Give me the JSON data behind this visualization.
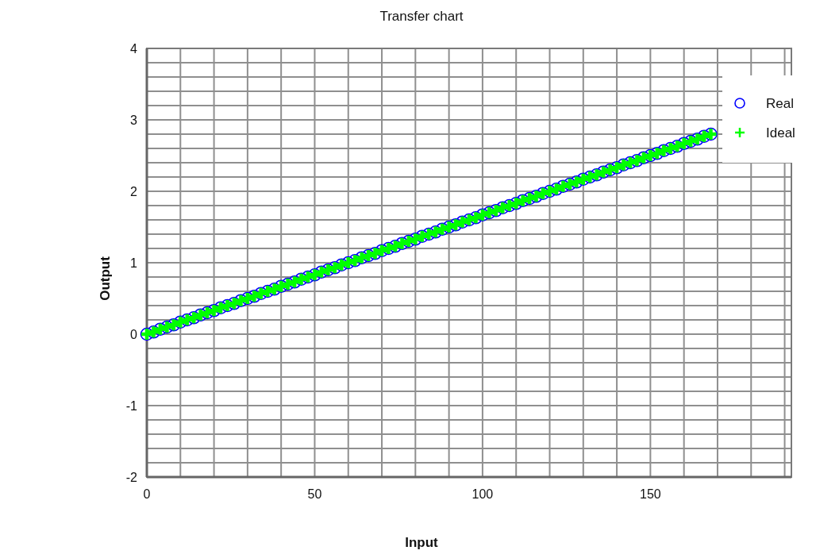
{
  "chart_data": {
    "type": "scatter",
    "title": "Transfer chart",
    "xlabel": "Input",
    "ylabel": "Output",
    "x": [
      0,
      2,
      4,
      6,
      8,
      10,
      12,
      14,
      16,
      18,
      20,
      22,
      24,
      26,
      28,
      30,
      32,
      34,
      36,
      38,
      40,
      42,
      44,
      46,
      48,
      50,
      52,
      54,
      56,
      58,
      60,
      62,
      64,
      66,
      68,
      70,
      72,
      74,
      76,
      78,
      80,
      82,
      84,
      86,
      88,
      90,
      92,
      94,
      96,
      98,
      100,
      102,
      104,
      106,
      108,
      110,
      112,
      114,
      116,
      118,
      120,
      122,
      124,
      126,
      128,
      130,
      132,
      134,
      136,
      138,
      140,
      142,
      144,
      146,
      148,
      150,
      152,
      154,
      156,
      158,
      160,
      162,
      164,
      166,
      168
    ],
    "series": [
      {
        "name": "Real",
        "color": "#0000ff",
        "marker": "circle",
        "values": [
          0,
          0.03,
          0.07,
          0.1,
          0.13,
          0.17,
          0.2,
          0.23,
          0.27,
          0.3,
          0.33,
          0.37,
          0.4,
          0.43,
          0.47,
          0.5,
          0.53,
          0.57,
          0.6,
          0.63,
          0.67,
          0.7,
          0.73,
          0.77,
          0.8,
          0.83,
          0.87,
          0.9,
          0.93,
          0.97,
          1,
          1.03,
          1.07,
          1.1,
          1.13,
          1.17,
          1.2,
          1.23,
          1.27,
          1.3,
          1.33,
          1.37,
          1.4,
          1.43,
          1.47,
          1.5,
          1.53,
          1.57,
          1.6,
          1.63,
          1.67,
          1.7,
          1.73,
          1.77,
          1.8,
          1.83,
          1.87,
          1.9,
          1.93,
          1.97,
          2,
          2.03,
          2.07,
          2.1,
          2.13,
          2.17,
          2.2,
          2.23,
          2.27,
          2.3,
          2.33,
          2.37,
          2.4,
          2.43,
          2.47,
          2.5,
          2.53,
          2.57,
          2.6,
          2.63,
          2.67,
          2.7,
          2.73,
          2.77,
          2.8
        ]
      },
      {
        "name": "Ideal",
        "color": "#00ff00",
        "marker": "cross",
        "values": [
          0,
          0.03,
          0.07,
          0.1,
          0.13,
          0.17,
          0.2,
          0.23,
          0.27,
          0.3,
          0.33,
          0.37,
          0.4,
          0.43,
          0.47,
          0.5,
          0.53,
          0.57,
          0.6,
          0.63,
          0.67,
          0.7,
          0.73,
          0.77,
          0.8,
          0.83,
          0.87,
          0.9,
          0.93,
          0.97,
          1,
          1.03,
          1.07,
          1.1,
          1.13,
          1.17,
          1.2,
          1.23,
          1.27,
          1.3,
          1.33,
          1.37,
          1.4,
          1.43,
          1.47,
          1.5,
          1.53,
          1.57,
          1.6,
          1.63,
          1.67,
          1.7,
          1.73,
          1.77,
          1.8,
          1.83,
          1.87,
          1.9,
          1.93,
          1.97,
          2,
          2.03,
          2.07,
          2.1,
          2.13,
          2.17,
          2.2,
          2.23,
          2.27,
          2.3,
          2.33,
          2.37,
          2.4,
          2.43,
          2.47,
          2.5,
          2.53,
          2.57,
          2.6,
          2.63,
          2.67,
          2.7,
          2.73,
          2.77,
          2.8
        ]
      }
    ],
    "xlim": [
      0,
      192
    ],
    "xticks": [
      0,
      {
        "value": 10,
        "label": null
      },
      {
        "value": 20,
        "label": null
      },
      {
        "value": 30,
        "label": null
      },
      {
        "value": 40,
        "label": null
      },
      50,
      {
        "value": 60,
        "label": null
      },
      {
        "value": 70,
        "label": null
      },
      {
        "value": 80,
        "label": null
      },
      {
        "value": 90,
        "label": null
      },
      100,
      {
        "value": 110,
        "label": null
      },
      {
        "value": 120,
        "label": null
      },
      {
        "value": 130,
        "label": null
      },
      {
        "value": 140,
        "label": null
      },
      150,
      {
        "value": 160,
        "label": null
      },
      {
        "value": 170,
        "label": null
      },
      {
        "value": 180,
        "label": null
      },
      {
        "value": 190,
        "label": null
      }
    ],
    "ylim": [
      -2,
      4
    ],
    "yticks": [
      -2,
      {
        "value": -1.8,
        "label": null
      },
      {
        "value": -1.6,
        "label": null
      },
      {
        "value": -1.4,
        "label": null
      },
      {
        "value": -1.2,
        "label": null
      },
      -1,
      {
        "value": -0.8,
        "label": null
      },
      {
        "value": -0.6,
        "label": null
      },
      {
        "value": -0.4,
        "label": null
      },
      {
        "value": -0.2,
        "label": null
      },
      0,
      {
        "value": 0.2,
        "label": null
      },
      {
        "value": 0.4,
        "label": null
      },
      {
        "value": 0.6,
        "label": null
      },
      {
        "value": 0.8,
        "label": null
      },
      1,
      {
        "value": 1.2,
        "label": null
      },
      {
        "value": 1.4,
        "label": null
      },
      {
        "value": 1.6,
        "label": null
      },
      {
        "value": 1.8,
        "label": null
      },
      2,
      {
        "value": 2.2,
        "label": null
      },
      {
        "value": 2.4,
        "label": null
      },
      {
        "value": 2.6,
        "label": null
      },
      {
        "value": 2.8,
        "label": null
      },
      3,
      {
        "value": 3.2,
        "label": null
      },
      {
        "value": 3.4,
        "label": null
      },
      {
        "value": 3.6,
        "label": null
      },
      {
        "value": 3.8,
        "label": null
      },
      4
    ],
    "grid": true,
    "legend": "top right"
  }
}
